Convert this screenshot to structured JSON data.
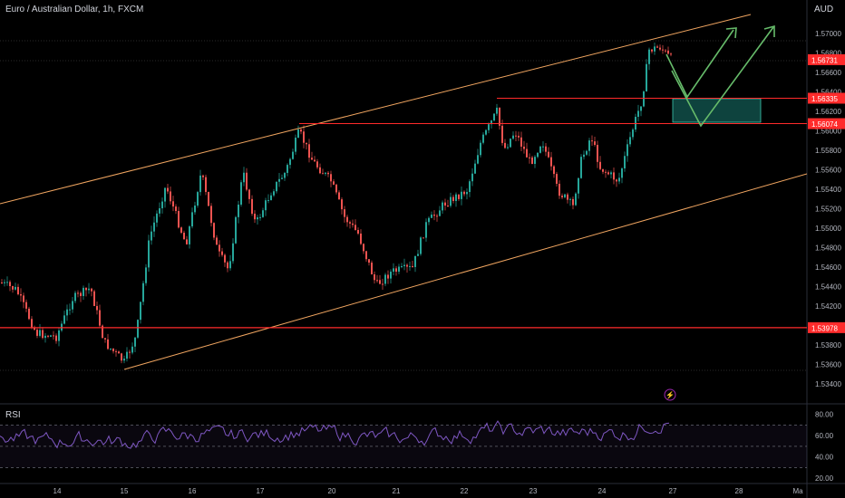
{
  "chart_data": {
    "type": "candlestick",
    "title": "Euro / Australian Dollar, 1h, FXCM",
    "unit": "AUD",
    "price_range": [
      1.5327,
      1.5725
    ],
    "price_ticks": [
      "1.57000",
      "1.56800",
      "1.56600",
      "1.56400",
      "1.56200",
      "1.56000",
      "1.55800",
      "1.55600",
      "1.55400",
      "1.55200",
      "1.55000",
      "1.54800",
      "1.54600",
      "1.54400",
      "1.54200",
      "1.54000",
      "1.53800",
      "1.53600",
      "1.53400"
    ],
    "x_ticks": [
      "14",
      "15",
      "16",
      "17",
      "20",
      "21",
      "22",
      "23",
      "24",
      "27",
      "28",
      "Ma"
    ],
    "price_labels": [
      {
        "text": "1.56731",
        "price": 1.56731
      },
      {
        "text": "1.56335",
        "price": 1.56335
      },
      {
        "text": "1.56074",
        "price": 1.56074
      },
      {
        "text": "1.53978",
        "price": 1.53978
      }
    ],
    "levels": [
      {
        "price": 1.56335,
        "color": "#ff2b2b"
      },
      {
        "price": 1.56074,
        "color": "#ff2b2b"
      },
      {
        "price": 1.53978,
        "color": "#ff2b2b"
      }
    ],
    "rsi": {
      "label": "RSI",
      "range": [
        15,
        90
      ],
      "levels": [
        70,
        30
      ],
      "ticks": [
        "80.00",
        "60.00",
        "40.00",
        "20.00"
      ]
    },
    "colors": {
      "up": "#26a69a",
      "down": "#ef5350",
      "channel": "#f0a560",
      "level": "#ff2b2b",
      "rsi": "#7e57c2",
      "arrow": "#66bb6a",
      "zone": "#0f4a45"
    }
  }
}
